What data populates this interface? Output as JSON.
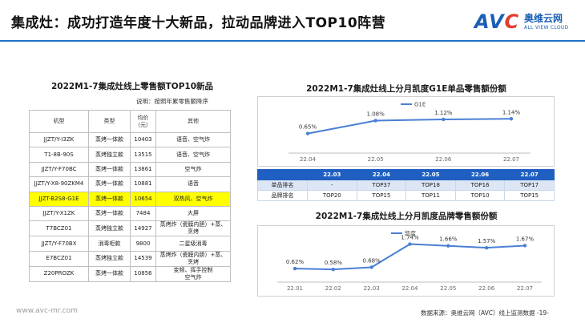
{
  "header": {
    "title": "集成灶：成功打造年度十大新品，拉动品牌进入TOP10阵营"
  },
  "logo": {
    "mark_prefix": "AV",
    "mark_suffix": "C",
    "cn": "奥维云网",
    "en": "ALL VIEW CLOUD"
  },
  "rank_table": {
    "title": "2022M1-7集成灶线上零售额TOP10新品",
    "note": "说明：按照年累零售额降序",
    "headers": [
      "机型",
      "类型",
      "均价\n（元）",
      "其他"
    ],
    "rows": [
      {
        "model": "JJZT/Y-I3ZK",
        "type": "蒸烤一体款",
        "price": "10403",
        "other": "语音、空气炸",
        "highlight": false
      },
      {
        "model": "T1-8B-90S",
        "type": "蒸烤独立款",
        "price": "13515",
        "other": "语音、空气炸",
        "highlight": false
      },
      {
        "model": "JJZT/Y-F70BC",
        "type": "蒸烤一体款",
        "price": "13861",
        "other": "空气炸",
        "highlight": false
      },
      {
        "model": "JJZT/Y-X8-90ZKM4",
        "type": "蒸烤一体款",
        "price": "10881",
        "other": "语音",
        "highlight": false
      },
      {
        "model": "JJZT-B2S8-G1E",
        "type": "蒸烤一体款",
        "price": "10654",
        "other": "双热风、空气炸",
        "highlight": true
      },
      {
        "model": "JJZT/Y-X1ZK",
        "type": "蒸烤一体款",
        "price": "7484",
        "other": "大屏",
        "highlight": false
      },
      {
        "model": "T7BCZ01",
        "type": "蒸烤独立款",
        "price": "14927",
        "other": "蒸烤炸（瓷膜内胆）+蒸、\n烹烤",
        "highlight": false
      },
      {
        "model": "JJZT/Y-F70BX",
        "type": "消毒柜款",
        "price": "9800",
        "other": "二星级消毒",
        "highlight": false
      },
      {
        "model": "E7BCZ01",
        "type": "蒸烤独立款",
        "price": "14539",
        "other": "蒸烤炸（瓷膜内胆）+蒸、\n烹烤",
        "highlight": false
      },
      {
        "model": "Z20PROZK",
        "type": "蒸烤一体款",
        "price": "10856",
        "other": "变频、挥手控制\n空气炸",
        "highlight": false
      }
    ]
  },
  "chart_data": [
    {
      "type": "line",
      "title": "2022M1-7集成灶线上分月凯度G1E单品零售额份额",
      "x": [
        "22.04",
        "22.05",
        "22.06",
        "22.07"
      ],
      "series": [
        {
          "name": "G1E",
          "values": [
            0.65,
            1.08,
            1.12,
            1.14
          ],
          "labels": [
            "0.65%",
            "1.08%",
            "1.12%",
            "1.14%"
          ]
        }
      ],
      "ylim": [
        0,
        1.6
      ],
      "grid": false,
      "legend": "top-left",
      "color": "#4a7fd4"
    },
    {
      "type": "line",
      "title": "2022M1-7集成灶线上分月凯度品牌零售额份额",
      "x": [
        "22.01",
        "22.02",
        "22.03",
        "22.04",
        "22.05",
        "22.06",
        "22.07"
      ],
      "series": [
        {
          "name": "凯度",
          "values": [
            0.62,
            0.58,
            0.68,
            1.74,
            1.66,
            1.57,
            1.67
          ],
          "labels": [
            "0.62%",
            "0.58%",
            "0.68%",
            "1.74%",
            "1.66%",
            "1.57%",
            "1.67%"
          ]
        }
      ],
      "ylim": [
        0,
        2.2
      ],
      "grid": false,
      "legend": "top-left",
      "color": "#4a7fd4"
    }
  ],
  "rank_grid": {
    "months": [
      "22.03",
      "22.04",
      "22.05",
      "22.06",
      "22.07"
    ],
    "rows": [
      {
        "label": "单品排名",
        "values": [
          "-",
          "TOP37",
          "TOP18",
          "TOP16",
          "TOP17"
        ]
      },
      {
        "label": "品牌排名",
        "values": [
          "TOP20",
          "TOP15",
          "TOP11",
          "TOP10",
          "TOP15"
        ]
      }
    ]
  },
  "footer": {
    "website": "www.avc-mr.com",
    "source": "数据来源：奥维云网（AVC）线上监测数据    -19-"
  }
}
